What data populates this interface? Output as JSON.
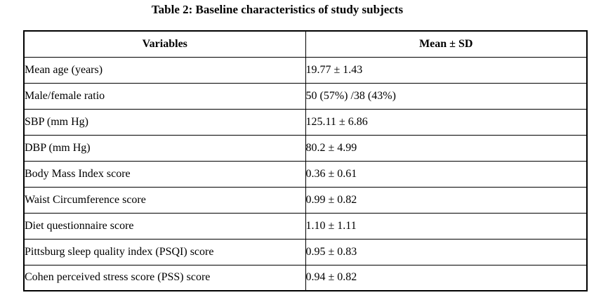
{
  "title": "Table 2: Baseline characteristics of study subjects",
  "table": {
    "headers": [
      "Variables",
      "Mean ± SD"
    ],
    "rows": [
      {
        "variable": "Mean age (years)",
        "value": "19.77 ± 1.43"
      },
      {
        "variable": "Male/female ratio",
        "value": "50 (57%) /38 (43%)"
      },
      {
        "variable": "SBP (mm Hg)",
        "value": "125.11 ± 6.86"
      },
      {
        "variable": "DBP (mm Hg)",
        "value": "80.2 ± 4.99"
      },
      {
        "variable": "Body Mass Index score",
        "value": "0.36 ± 0.61"
      },
      {
        "variable": "Waist Circumference score",
        "value": "0.99 ± 0.82"
      },
      {
        "variable": "Diet questionnaire score",
        "value": "1.10 ± 1.11"
      },
      {
        "variable": "Pittsburg sleep quality index (PSQI) score",
        "value": "0.95 ± 0.83"
      },
      {
        "variable": "Cohen perceived stress score (PSS) score",
        "value": "0.94 ± 0.82"
      }
    ]
  }
}
